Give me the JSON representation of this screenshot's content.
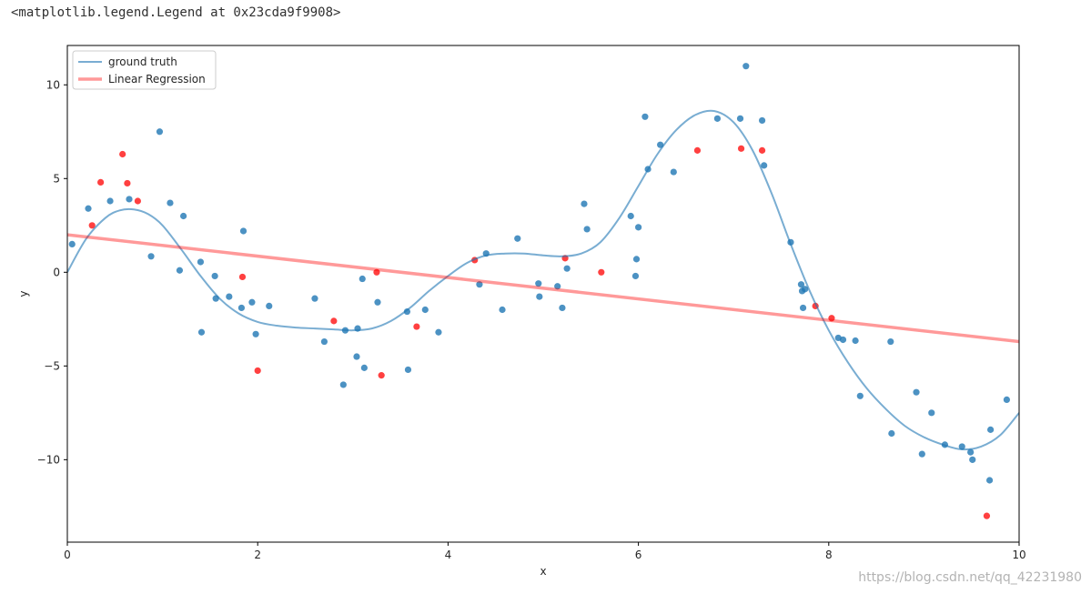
{
  "output_text": "<matplotlib.legend.Legend at 0x23cda9f9908>",
  "watermark": "https://blog.csdn.net/qq_42231980",
  "chart_data": {
    "type": "scatter",
    "xlabel": "x",
    "ylabel": "y",
    "xlim": [
      0,
      10
    ],
    "ylim": [
      -14.4,
      12.1
    ],
    "xticks": [
      0,
      2,
      4,
      6,
      8,
      10
    ],
    "xtick_labels": [
      "0",
      "2",
      "4",
      "6",
      "8",
      "10"
    ],
    "yticks": [
      -10,
      -5,
      0,
      5,
      10
    ],
    "ytick_labels": [
      "−10",
      "−5",
      "0",
      "5",
      "10"
    ],
    "grid": false,
    "legend_position": "top-left",
    "colors": {
      "train_points": "#1f77b4",
      "test_points": "#ff0000",
      "ground_truth": "#1f77b4",
      "regression": "#ff0000"
    },
    "series": [
      {
        "name": "ground truth",
        "kind": "line",
        "x": [
          0,
          0.2,
          0.4,
          0.55,
          0.7,
          0.85,
          1.0,
          1.2,
          1.4,
          1.6,
          1.8,
          2.0,
          2.2,
          2.4,
          2.6,
          2.8,
          3.0,
          3.2,
          3.4,
          3.6,
          3.8,
          4.0,
          4.2,
          4.4,
          4.6,
          4.8,
          5.0,
          5.2,
          5.4,
          5.6,
          5.8,
          6.0,
          6.2,
          6.4,
          6.6,
          6.8,
          7.0,
          7.2,
          7.4,
          7.6,
          7.8,
          8.0,
          8.2,
          8.4,
          8.6,
          8.8,
          9.0,
          9.2,
          9.4,
          9.6,
          9.8,
          10.0
        ],
        "y": [
          0,
          1.8,
          2.9,
          3.3,
          3.35,
          3.1,
          2.5,
          1.2,
          -0.2,
          -1.4,
          -2.2,
          -2.65,
          -2.85,
          -2.95,
          -3.0,
          -3.05,
          -3.1,
          -3.0,
          -2.6,
          -1.9,
          -1.0,
          -0.2,
          0.5,
          0.9,
          1.0,
          1.0,
          0.9,
          0.85,
          1.0,
          1.6,
          2.9,
          4.6,
          6.3,
          7.6,
          8.4,
          8.6,
          8.0,
          6.5,
          4.2,
          1.5,
          -1.0,
          -3.1,
          -4.8,
          -6.2,
          -7.3,
          -8.2,
          -8.8,
          -9.2,
          -9.45,
          -9.3,
          -8.7,
          -7.5
        ]
      },
      {
        "name": "Linear Regression",
        "kind": "line",
        "x": [
          0,
          10
        ],
        "y": [
          2.0,
          -3.7
        ]
      },
      {
        "kind": "scatter",
        "x": [
          0.05,
          0.22,
          0.45,
          0.65,
          0.97,
          1.08,
          1.18,
          1.22,
          1.4,
          1.41,
          1.55,
          1.56,
          1.7,
          1.83,
          1.85,
          1.94,
          1.98,
          2.12,
          2.6,
          2.7,
          2.9,
          2.92,
          3.04,
          3.05,
          3.1,
          3.12,
          3.26,
          3.57,
          3.58,
          3.76,
          3.9,
          4.4,
          4.33,
          4.57,
          4.73,
          4.95,
          4.96,
          5.15,
          5.2,
          5.25,
          5.43,
          5.46,
          5.92,
          5.97,
          5.98,
          6.0,
          6.07,
          6.1,
          6.23,
          6.37,
          6.83,
          7.07,
          7.13,
          7.3,
          7.32,
          7.6,
          7.71,
          7.72,
          7.73,
          7.75,
          8.1,
          8.15,
          8.28,
          8.33,
          8.65,
          8.66,
          8.92,
          8.98,
          9.08,
          9.22,
          9.4,
          9.49,
          9.51,
          9.69,
          9.7,
          9.87,
          0.88
        ],
        "y": [
          1.5,
          3.4,
          3.8,
          3.9,
          7.5,
          3.7,
          0.1,
          3.0,
          0.55,
          -3.2,
          -0.2,
          -1.4,
          -1.3,
          -1.9,
          2.2,
          -1.6,
          -3.3,
          -1.8,
          -1.4,
          -3.7,
          -6.0,
          -3.1,
          -4.5,
          -3.0,
          -0.35,
          -5.1,
          -1.6,
          -2.1,
          -5.2,
          -2.0,
          -3.2,
          1.0,
          -0.65,
          -2.0,
          1.8,
          -0.6,
          -1.3,
          -0.75,
          -1.9,
          0.2,
          3.65,
          2.3,
          3.0,
          -0.2,
          0.7,
          2.4,
          8.3,
          5.5,
          6.8,
          5.35,
          8.2,
          8.2,
          11.0,
          8.1,
          5.7,
          1.6,
          -0.65,
          -1.0,
          -1.9,
          -0.9,
          -3.5,
          -3.6,
          -3.65,
          -6.6,
          -3.7,
          -8.6,
          -6.4,
          -9.7,
          -7.5,
          -9.2,
          -9.3,
          -9.6,
          -10.0,
          -11.1,
          -8.4,
          -6.8,
          0.85
        ]
      },
      {
        "kind": "scatter",
        "x": [
          0.26,
          0.35,
          0.58,
          0.63,
          0.74,
          1.84,
          2.0,
          2.8,
          3.25,
          3.3,
          3.67,
          4.28,
          5.23,
          5.61,
          6.62,
          7.08,
          7.3,
          7.86,
          8.03,
          9.66
        ],
        "y": [
          2.5,
          4.8,
          6.3,
          4.75,
          3.8,
          -0.25,
          -5.25,
          -2.6,
          0.0,
          -5.5,
          -2.9,
          0.65,
          0.75,
          0.0,
          6.5,
          6.6,
          6.5,
          -1.8,
          -2.45,
          -13.0
        ]
      }
    ]
  }
}
